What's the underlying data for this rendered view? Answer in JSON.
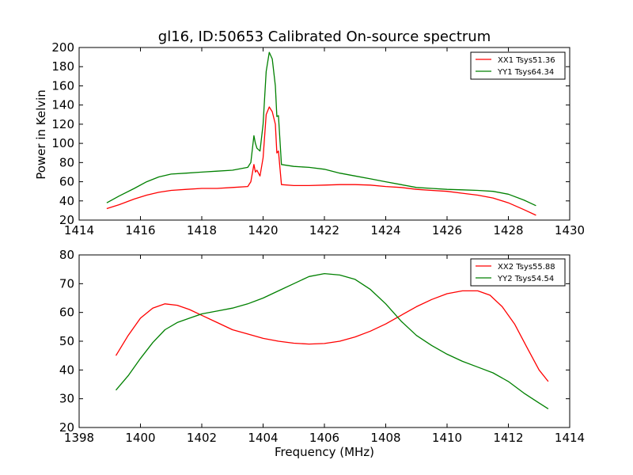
{
  "figure": {
    "title": "gl16, ID:50653 Calibrated On-source spectrum",
    "ylabel": "Power in Kelvin",
    "xlabel": "Frequency (MHz)"
  },
  "chart_data": [
    {
      "type": "line",
      "title": "gl16, ID:50653 Calibrated On-source spectrum",
      "ylabel": "Power in Kelvin",
      "xlabel": "",
      "xlim": [
        1414,
        1430
      ],
      "ylim": [
        20,
        200
      ],
      "xticks": [
        1414,
        1416,
        1418,
        1420,
        1422,
        1424,
        1426,
        1428,
        1430
      ],
      "yticks": [
        20,
        40,
        60,
        80,
        100,
        120,
        140,
        160,
        180,
        200
      ],
      "legend_position": "top-right",
      "grid": false,
      "series": [
        {
          "name": "XX1 Tsys51.36",
          "color": "#ff0000",
          "x": [
            1414.9,
            1415.3,
            1415.8,
            1416.2,
            1416.6,
            1417.0,
            1417.5,
            1418.0,
            1418.5,
            1419.0,
            1419.5,
            1419.6,
            1419.7,
            1419.75,
            1419.8,
            1419.9,
            1420.0,
            1420.1,
            1420.2,
            1420.3,
            1420.4,
            1420.45,
            1420.5,
            1420.6,
            1421.0,
            1421.5,
            1422.0,
            1422.5,
            1423.0,
            1423.5,
            1424.0,
            1424.5,
            1425.0,
            1425.5,
            1426.0,
            1426.5,
            1427.0,
            1427.5,
            1428.0,
            1428.5,
            1428.9
          ],
          "y": [
            32,
            36,
            42,
            46,
            49,
            51,
            52,
            53,
            53,
            54,
            55,
            60,
            78,
            70,
            72,
            66,
            85,
            130,
            138,
            133,
            120,
            90,
            92,
            57,
            56,
            56,
            56.5,
            57,
            57,
            56.5,
            55,
            54,
            52,
            51,
            50,
            48,
            46,
            43,
            38,
            31,
            25
          ]
        },
        {
          "name": "YY1 Tsys64.34",
          "color": "#008000",
          "x": [
            1414.9,
            1415.3,
            1415.8,
            1416.2,
            1416.6,
            1417.0,
            1417.5,
            1418.0,
            1418.5,
            1419.0,
            1419.5,
            1419.6,
            1419.7,
            1419.75,
            1419.8,
            1419.9,
            1420.0,
            1420.1,
            1420.2,
            1420.3,
            1420.4,
            1420.45,
            1420.5,
            1420.6,
            1421.0,
            1421.5,
            1422.0,
            1422.5,
            1423.0,
            1423.5,
            1424.0,
            1424.5,
            1425.0,
            1425.5,
            1426.0,
            1426.5,
            1427.0,
            1427.5,
            1428.0,
            1428.5,
            1428.9
          ],
          "y": [
            38,
            45,
            53,
            60,
            65,
            68,
            69,
            70,
            71,
            72,
            75,
            80,
            108,
            100,
            95,
            92,
            120,
            175,
            195,
            188,
            160,
            128,
            129,
            78,
            76,
            75,
            73,
            69,
            66,
            63,
            60,
            57,
            54,
            53,
            52,
            51.5,
            51,
            50,
            47,
            41,
            35
          ]
        }
      ]
    },
    {
      "type": "line",
      "title": "",
      "ylabel": "",
      "xlabel": "Frequency (MHz)",
      "xlim": [
        1398,
        1414
      ],
      "ylim": [
        20,
        80
      ],
      "xticks": [
        1398,
        1400,
        1402,
        1404,
        1406,
        1408,
        1410,
        1412,
        1414
      ],
      "yticks": [
        20,
        30,
        40,
        50,
        60,
        70,
        80
      ],
      "legend_position": "top-right",
      "grid": false,
      "series": [
        {
          "name": "XX2 Tsys55.88",
          "color": "#ff0000",
          "x": [
            1399.2,
            1399.6,
            1400.0,
            1400.4,
            1400.8,
            1401.2,
            1401.6,
            1402.0,
            1402.5,
            1403.0,
            1403.5,
            1404.0,
            1404.5,
            1405.0,
            1405.5,
            1406.0,
            1406.5,
            1407.0,
            1407.5,
            1408.0,
            1408.5,
            1409.0,
            1409.5,
            1410.0,
            1410.5,
            1411.0,
            1411.4,
            1411.8,
            1412.2,
            1412.6,
            1413.0,
            1413.3
          ],
          "y": [
            45,
            52,
            58,
            61.5,
            63,
            62.5,
            61,
            59,
            56.5,
            54,
            52.5,
            51,
            50,
            49.3,
            49,
            49.2,
            50,
            51.5,
            53.5,
            56,
            59,
            62,
            64.5,
            66.5,
            67.5,
            67.5,
            66,
            62,
            56,
            48,
            40,
            36
          ]
        },
        {
          "name": "YY2 Tsys54.54",
          "color": "#008000",
          "x": [
            1399.2,
            1399.6,
            1400.0,
            1400.4,
            1400.8,
            1401.2,
            1401.6,
            1402.0,
            1402.5,
            1403.0,
            1403.5,
            1404.0,
            1404.5,
            1405.0,
            1405.5,
            1406.0,
            1406.5,
            1407.0,
            1407.5,
            1408.0,
            1408.5,
            1409.0,
            1409.5,
            1410.0,
            1410.5,
            1411.0,
            1411.5,
            1412.0,
            1412.5,
            1413.0,
            1413.3
          ],
          "y": [
            33,
            38,
            44,
            49.5,
            54,
            56.5,
            58,
            59.5,
            60.5,
            61.5,
            63,
            65,
            67.5,
            70,
            72.5,
            73.5,
            73,
            71.5,
            68,
            63,
            57,
            52,
            48.5,
            45.5,
            43,
            41,
            39,
            36,
            32,
            28.5,
            26.5
          ]
        }
      ]
    }
  ]
}
